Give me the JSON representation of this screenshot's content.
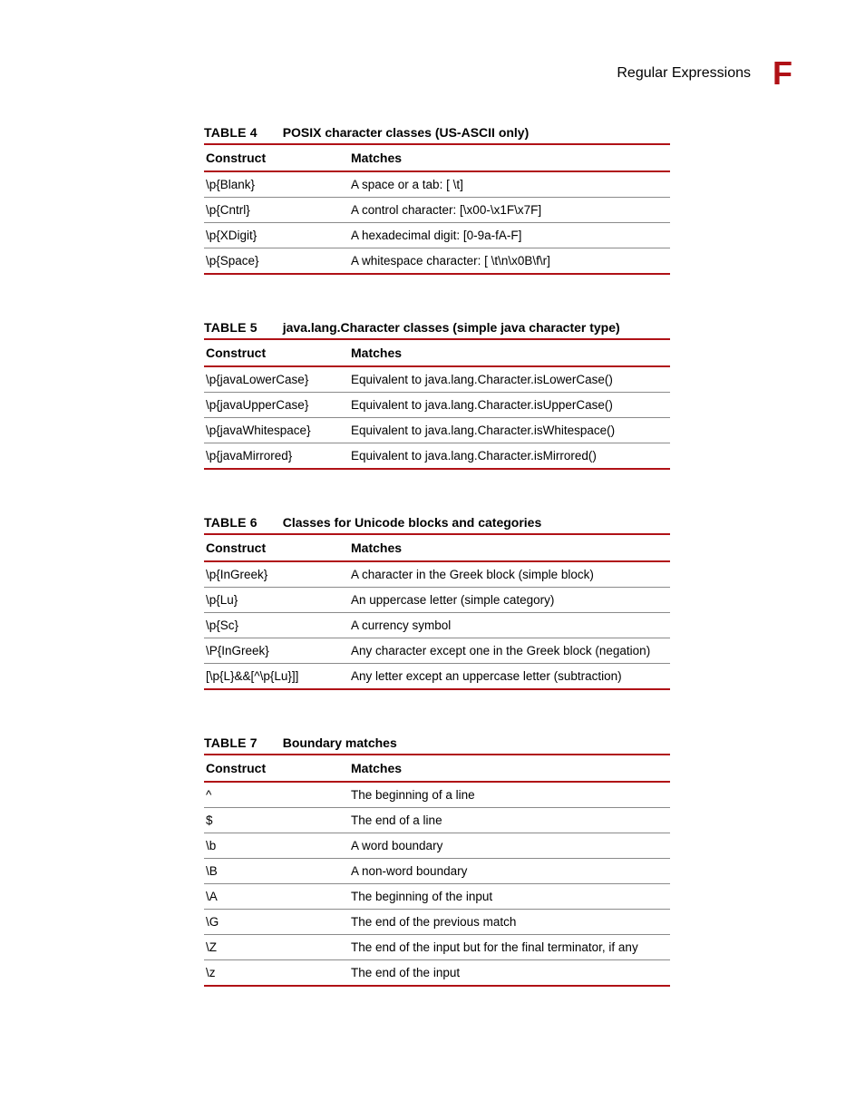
{
  "header": {
    "section_title": "Regular Expressions",
    "chapter_letter": "F"
  },
  "colors": {
    "rule": "#b01116",
    "row_border": "#8a8a8a",
    "text": "#000000",
    "background": "#ffffff"
  },
  "tables": [
    {
      "number": "TABLE 4",
      "title": "POSIX character classes (US-ASCII only)",
      "columns": [
        "Construct",
        "Matches"
      ],
      "rows": [
        [
          "\\p{Blank}",
          "A space or a tab: [ \\t]"
        ],
        [
          "\\p{Cntrl}",
          "A control character: [\\x00-\\x1F\\x7F]"
        ],
        [
          "\\p{XDigit}",
          "A hexadecimal digit: [0-9a-fA-F]"
        ],
        [
          "\\p{Space}",
          "A whitespace character: [ \\t\\n\\x0B\\f\\r]"
        ]
      ]
    },
    {
      "number": "TABLE 5",
      "title": "java.lang.Character classes (simple java character type)",
      "columns": [
        "Construct",
        "Matches"
      ],
      "rows": [
        [
          "\\p{javaLowerCase}",
          "Equivalent to java.lang.Character.isLowerCase()"
        ],
        [
          "\\p{javaUpperCase}",
          "Equivalent to java.lang.Character.isUpperCase()"
        ],
        [
          "\\p{javaWhitespace}",
          "Equivalent to java.lang.Character.isWhitespace()"
        ],
        [
          "\\p{javaMirrored}",
          "Equivalent to java.lang.Character.isMirrored()"
        ]
      ]
    },
    {
      "number": "TABLE 6",
      "title": "Classes for Unicode blocks and categories",
      "columns": [
        "Construct",
        "Matches"
      ],
      "rows": [
        [
          "\\p{InGreek}",
          "A character in the Greek block (simple block)"
        ],
        [
          "\\p{Lu}",
          "An uppercase letter (simple category)"
        ],
        [
          "\\p{Sc}",
          "A currency symbol"
        ],
        [
          "\\P{InGreek}",
          "Any character except one in the Greek block (negation)"
        ],
        [
          "[\\p{L}&&[^\\p{Lu}]]",
          "Any letter except an uppercase letter (subtraction)"
        ]
      ]
    },
    {
      "number": "TABLE 7",
      "title": "Boundary matches",
      "columns": [
        "Construct",
        "Matches"
      ],
      "rows": [
        [
          "^",
          "The beginning of a line"
        ],
        [
          "$",
          "The end of a line"
        ],
        [
          "\\b",
          "A word boundary"
        ],
        [
          "\\B",
          "A non-word boundary"
        ],
        [
          "\\A",
          "The beginning of the input"
        ],
        [
          "\\G",
          "The end of the previous match"
        ],
        [
          "\\Z",
          "The end of the input but for the final terminator, if any"
        ],
        [
          "\\z",
          "The end of the input"
        ]
      ]
    }
  ]
}
